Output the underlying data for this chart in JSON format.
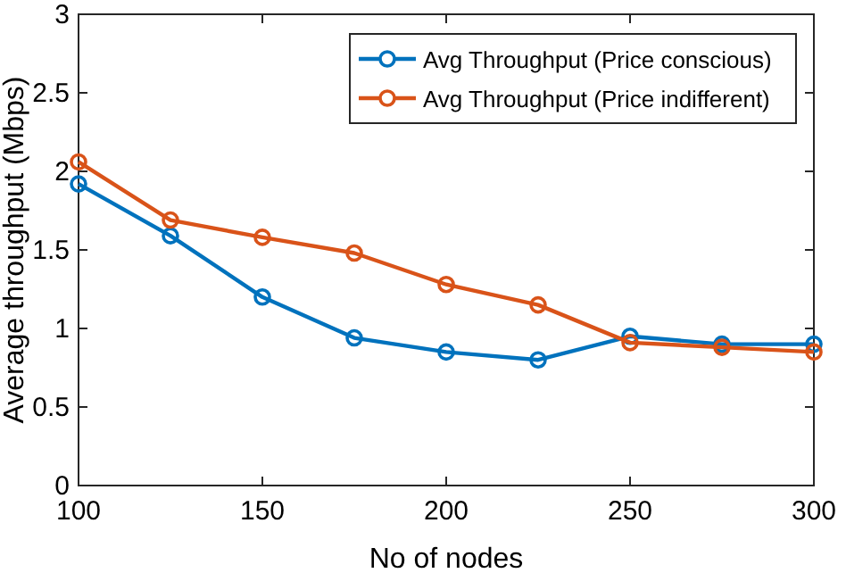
{
  "chart_data": {
    "type": "line",
    "xlabel": "No of nodes",
    "ylabel": "Average throughput (Mbps)",
    "x": [
      100,
      125,
      150,
      175,
      200,
      225,
      250,
      275,
      300
    ],
    "series": [
      {
        "name": "Avg Throughput (Price conscious)",
        "color": "#0072bd",
        "values": [
          1.92,
          1.59,
          1.2,
          0.94,
          0.85,
          0.8,
          0.95,
          0.9,
          0.9
        ]
      },
      {
        "name": "Avg Throughput (Price indifferent)",
        "color": "#d95319",
        "values": [
          2.06,
          1.69,
          1.58,
          1.48,
          1.28,
          1.15,
          0.91,
          0.88,
          0.85
        ]
      }
    ],
    "xlim": [
      100,
      300
    ],
    "xticks": [
      100,
      150,
      200,
      250,
      300
    ],
    "ylim": [
      0,
      3
    ],
    "yticks": [
      0,
      0.5,
      1,
      1.5,
      2,
      2.5,
      3
    ],
    "grid": false,
    "legend": "top right",
    "marker": "circle",
    "line_style": "solid"
  }
}
